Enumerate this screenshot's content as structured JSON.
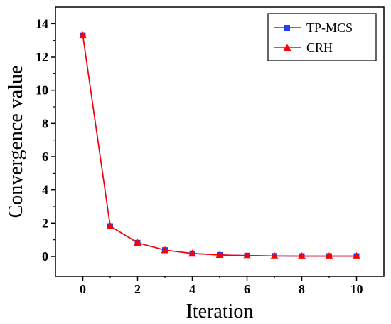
{
  "chart_data": {
    "type": "line",
    "xlabel": "Iteration",
    "ylabel": "Convergence value",
    "xlim": [
      -1,
      11
    ],
    "ylim": [
      -1.2,
      15
    ],
    "xticks": [
      0,
      2,
      4,
      6,
      8,
      10
    ],
    "yticks": [
      0,
      2,
      4,
      6,
      8,
      10,
      12,
      14
    ],
    "grid": false,
    "legend_position": "top-right",
    "x": [
      0,
      1,
      2,
      3,
      4,
      5,
      6,
      7,
      8,
      9,
      10
    ],
    "series": [
      {
        "name": "TP-MCS",
        "color": "#1f3fff",
        "marker": "square",
        "values": [
          13.3,
          1.82,
          0.82,
          0.38,
          0.18,
          0.09,
          0.05,
          0.03,
          0.02,
          0.02,
          0.02
        ]
      },
      {
        "name": "CRH",
        "color": "#ff0000",
        "marker": "triangle",
        "values": [
          13.3,
          1.82,
          0.82,
          0.38,
          0.18,
          0.09,
          0.05,
          0.03,
          0.02,
          0.02,
          0.02
        ]
      }
    ]
  }
}
